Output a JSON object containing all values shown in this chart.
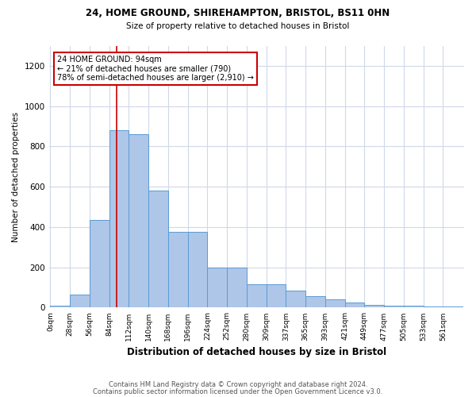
{
  "title1": "24, HOME GROUND, SHIREHAMPTON, BRISTOL, BS11 0HN",
  "title2": "Size of property relative to detached houses in Bristol",
  "xlabel": "Distribution of detached houses by size in Bristol",
  "ylabel": "Number of detached properties",
  "bar_labels": [
    "0sqm",
    "28sqm",
    "56sqm",
    "84sqm",
    "112sqm",
    "140sqm",
    "168sqm",
    "196sqm",
    "224sqm",
    "252sqm",
    "280sqm",
    "309sqm",
    "337sqm",
    "365sqm",
    "393sqm",
    "421sqm",
    "449sqm",
    "477sqm",
    "505sqm",
    "533sqm",
    "561sqm"
  ],
  "bar_values": [
    10,
    65,
    435,
    880,
    860,
    580,
    375,
    375,
    200,
    200,
    115,
    115,
    85,
    55,
    40,
    25,
    15,
    8,
    8,
    5,
    5
  ],
  "bar_color": "#aec6e8",
  "bar_edge_color": "#5b9bd5",
  "annotation_box_text": "24 HOME GROUND: 94sqm\n← 21% of detached houses are smaller (790)\n78% of semi-detached houses are larger (2,910) →",
  "ylim": [
    0,
    1300
  ],
  "yticks": [
    0,
    200,
    400,
    600,
    800,
    1000,
    1200
  ],
  "footer1": "Contains HM Land Registry data © Crown copyright and database right 2024.",
  "footer2": "Contains public sector information licensed under the Open Government Licence v3.0.",
  "bg_color": "#ffffff",
  "grid_color": "#d0d8e8",
  "annotation_box_color": "#ffffff",
  "annotation_box_edge_color": "#cc0000",
  "annotation_line_color": "#cc0000",
  "bin_width": 28,
  "property_sqm": 94
}
